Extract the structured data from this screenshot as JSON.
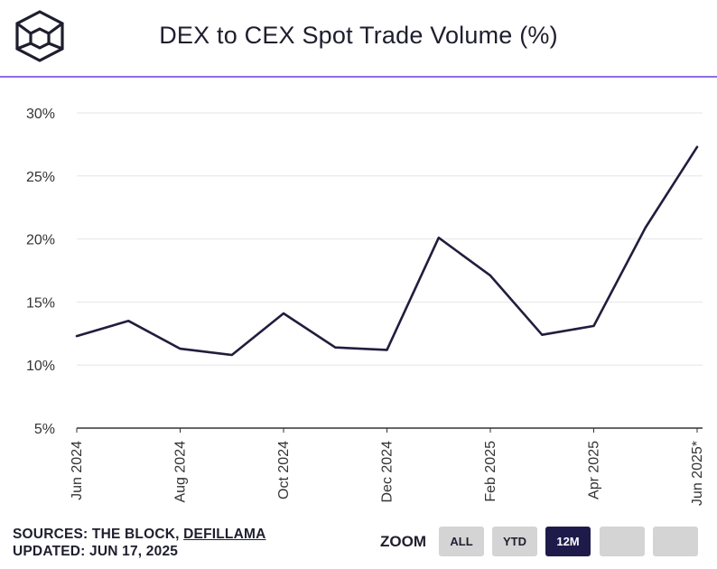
{
  "header": {
    "title": "DEX to CEX Spot Trade Volume (%)",
    "logo_icon": "the-block-cube-icon"
  },
  "footer": {
    "sources_prefix": "SOURCES: THE BLOCK, ",
    "sources_link": "DEFILLAMA",
    "updated": "UPDATED: JUN 17, 2025"
  },
  "zoom": {
    "label": "ZOOM",
    "buttons": [
      "ALL",
      "YTD",
      "12M",
      "",
      ""
    ],
    "selected": "12M"
  },
  "colors": {
    "line": "#221d3d",
    "accent_rule": "#8f6ce8",
    "active_button": "#1e1b4b",
    "button": "#d4d4d4",
    "grid": "#e6e6e6"
  },
  "chart_data": {
    "type": "line",
    "title": "DEX to CEX Spot Trade Volume (%)",
    "xlabel": "",
    "ylabel": "",
    "x": [
      "Jun 2024",
      "Jul 2024",
      "Aug 2024",
      "Sep 2024",
      "Oct 2024",
      "Nov 2024",
      "Dec 2024",
      "Jan 2025",
      "Feb 2025",
      "Mar 2025",
      "Apr 2025",
      "May 2025",
      "Jun 2025"
    ],
    "x_tick_labels": [
      "Jun 2024",
      "Aug 2024",
      "Oct 2024",
      "Dec 2024",
      "Feb 2025",
      "Apr 2025",
      "Jun 2025*"
    ],
    "series": [
      {
        "values": [
          12.3,
          13.5,
          11.3,
          10.8,
          14.1,
          11.4,
          11.2,
          20.1,
          17.1,
          12.4,
          13.1,
          20.9,
          27.3
        ]
      }
    ],
    "y_ticks": [
      "30%",
      "25%",
      "20%",
      "15%",
      "10%",
      "5%"
    ],
    "y_tick_values": [
      30,
      25,
      20,
      15,
      10,
      5
    ],
    "ylim": [
      5,
      30
    ],
    "grid": true,
    "legend": "none"
  }
}
